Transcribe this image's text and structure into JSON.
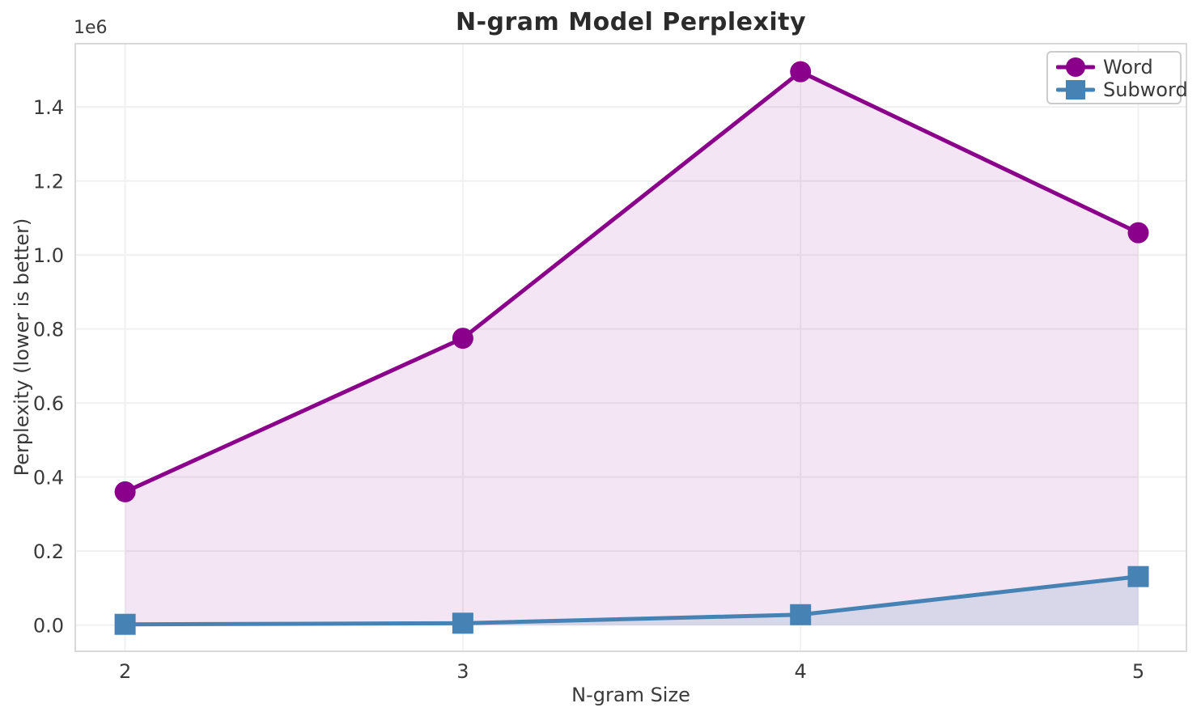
{
  "chart_data": {
    "type": "line",
    "title": "N-gram Model Perplexity",
    "xlabel": "N-gram Size",
    "ylabel": "Perplexity (lower is better)",
    "y_scale_offset_label": "1e6",
    "x": [
      2,
      3,
      4,
      5
    ],
    "xtick_labels": [
      "2",
      "3",
      "4",
      "5"
    ],
    "yticks": [
      0,
      200000,
      400000,
      600000,
      800000,
      1000000,
      1200000,
      1400000
    ],
    "ytick_labels": [
      "0.0",
      "0.2",
      "0.4",
      "0.6",
      "0.8",
      "1.0",
      "1.2",
      "1.4"
    ],
    "xlim": [
      1.85,
      5.145
    ],
    "ylim": [
      -73000,
      1573000
    ],
    "grid": true,
    "legend_position": "upper right",
    "series": [
      {
        "name": "Word",
        "color": "#8B008B",
        "marker": "circle",
        "fill_opacity": 0.1,
        "values": [
          360000,
          775000,
          1495000,
          1060000
        ]
      },
      {
        "name": "Subword",
        "color": "#4682B4",
        "marker": "square",
        "fill_opacity": 0.15,
        "values": [
          2000,
          5000,
          28000,
          131000
        ]
      }
    ],
    "axis_colors": {
      "grid": "#F0F0F0",
      "spine": "#D9D9D9",
      "tick_label": "#3a3a3a",
      "title": "#2b2b2b"
    }
  }
}
